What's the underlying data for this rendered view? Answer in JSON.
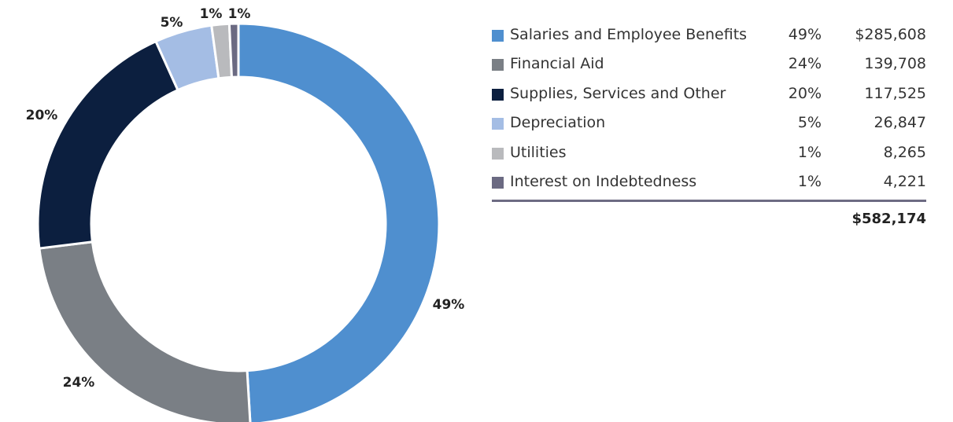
{
  "chart_data": {
    "type": "pie",
    "categories": [
      "Salaries and Employee Benefits",
      "Financial Aid",
      "Supplies, Services and Other",
      "Depreciation",
      "Utilities",
      "Interest on Indebtedness"
    ],
    "values": [
      285608,
      139708,
      117525,
      26847,
      8265,
      4221
    ],
    "percent_labels": [
      "49%",
      "24%",
      "20%",
      "5%",
      "1%",
      "1%"
    ],
    "value_labels": [
      "$285,608",
      "139,708",
      "117,525",
      "26,847",
      "8,265",
      "4,221"
    ],
    "colors": [
      "#4f8fcf",
      "#7a7f85",
      "#0c1f3f",
      "#a4bde4",
      "#b9babd",
      "#6b6a82"
    ],
    "total_label": "$582,174",
    "legend_position": "right"
  }
}
